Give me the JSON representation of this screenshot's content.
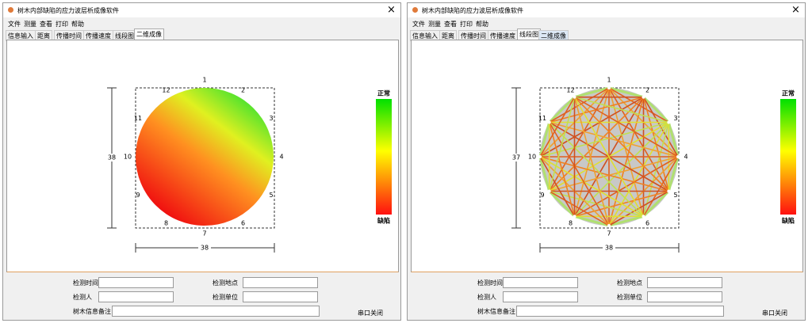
{
  "windows": [
    {
      "title": "树木内部缺陷的应力波层析成像软件",
      "close": "×",
      "menu": [
        "文件",
        "测量",
        "查看",
        "打印",
        "帮助"
      ],
      "tabs": [
        "信息输入",
        "距离",
        "传播时间",
        "传播速度",
        "线段图",
        "二维成像"
      ],
      "active_tab": 5,
      "view": "image",
      "sensors": [
        "1",
        "2",
        "3",
        "4",
        "5",
        "6",
        "7",
        "8",
        "9",
        "10",
        "11",
        "12"
      ],
      "height_label": "38",
      "width_label": "38",
      "legend": {
        "top": "正常",
        "bottom": "缺陷"
      },
      "form": [
        "检测时间",
        "检测地点",
        "检测人",
        "检测单位",
        "树木信息备注"
      ],
      "button": "串口关闭"
    },
    {
      "title": "树木内部缺陷的应力波层析成像软件",
      "close": "×",
      "menu": [
        "文件",
        "测量",
        "查看",
        "打印",
        "帮助"
      ],
      "tabs": [
        "信息输入",
        "距离",
        "传播时间",
        "传播速度",
        "线段图",
        "二维成像"
      ],
      "active_tab": 4,
      "view": "lines",
      "sensors": [
        "1",
        "2",
        "3",
        "4",
        "5",
        "6",
        "7",
        "8",
        "9",
        "10",
        "11",
        "12"
      ],
      "height_label": "37",
      "width_label": "38",
      "legend": {
        "top": "正常",
        "bottom": "缺陷"
      },
      "form": [
        "检测时间",
        "检测地点",
        "检测人",
        "检测单位",
        "树木信息备注"
      ],
      "button": "串口关闭"
    }
  ]
}
